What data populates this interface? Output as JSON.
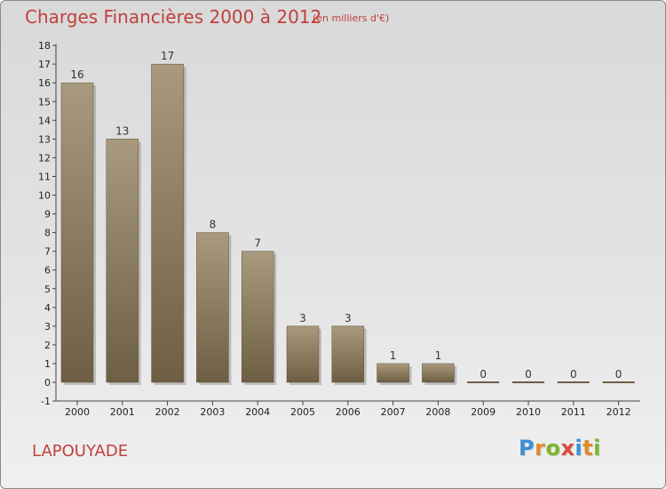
{
  "header": {
    "title": "Charges Financières 2000 à 2012",
    "subtitle": "(en milliers d'€)"
  },
  "commune_name": "LAPOUYADE",
  "logo": {
    "letters": [
      "P",
      "r",
      "o",
      "x",
      "i",
      "t",
      "i"
    ],
    "colors": [
      "#3a8fd6",
      "#e0892a",
      "#7ab62d",
      "#d94b3a",
      "#3a8fd6",
      "#e0892a",
      "#7ab62d"
    ]
  },
  "colors": {
    "title": "#c0403c",
    "bar_top": "#a99a7e",
    "bar_bottom": "#6e5e43"
  },
  "chart_data": {
    "type": "bar",
    "title": "Charges Financières 2000 à 2012",
    "subtitle": "(en milliers d'€)",
    "categories": [
      "2000",
      "2001",
      "2002",
      "2003",
      "2004",
      "2005",
      "2006",
      "2007",
      "2008",
      "2009",
      "2010",
      "2011",
      "2012"
    ],
    "values": [
      16,
      13,
      17,
      8,
      7,
      3,
      3,
      1,
      1,
      0,
      0,
      0,
      0
    ],
    "data_labels": [
      "16",
      "13",
      "17",
      "8",
      "7",
      "3",
      "3",
      "1",
      "1",
      "0",
      "0",
      "0",
      "0"
    ],
    "y_ticks": [
      "18",
      "17",
      "16",
      "15",
      "14",
      "13",
      "12",
      "11",
      "10",
      "9",
      "8",
      "7",
      "6",
      "5",
      "4",
      "3",
      "2",
      "1",
      "0",
      "-1"
    ],
    "ylim": [
      -1,
      18
    ],
    "grid": false,
    "legend": "none"
  }
}
